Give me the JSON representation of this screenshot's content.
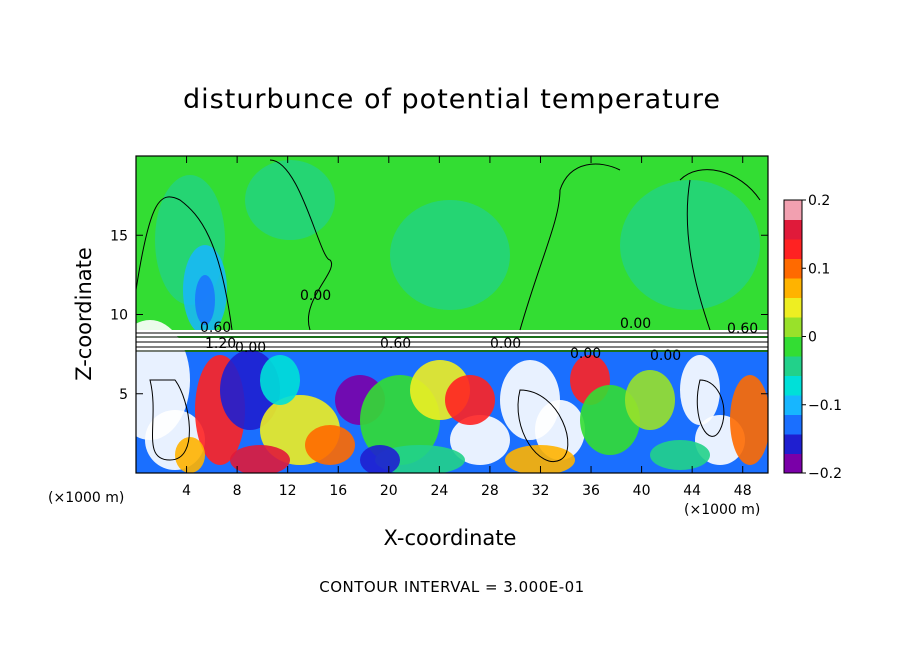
{
  "chart_data": {
    "type": "heatmap",
    "title": "disturbunce of potential temperature",
    "xlabel": "X-coordinate",
    "ylabel": "Z-coordinate",
    "x_unit_label": "(×1000 m)",
    "xlim": [
      0,
      50
    ],
    "ylim": [
      0,
      20
    ],
    "xticks": [
      "4",
      "8",
      "12",
      "16",
      "20",
      "24",
      "28",
      "32",
      "36",
      "40",
      "44",
      "48"
    ],
    "yticks": [
      "5",
      "10",
      "15"
    ],
    "colorbar": {
      "range": [
        -0.2,
        0.2
      ],
      "ticks": [
        "0.2",
        "0.1",
        "0",
        "−0.1",
        "−0.2"
      ],
      "colors": [
        "#7a00a8",
        "#1f1fd0",
        "#1a6fff",
        "#17b6ff",
        "#00e0d8",
        "#22d18a",
        "#33dd33",
        "#99e12a",
        "#eeee22",
        "#ffb300",
        "#ff6a00",
        "#ff2222",
        "#e01a3a",
        "#f2a0b0"
      ]
    },
    "contour_labels": [
      "0.00",
      "0.60",
      "1.20",
      "0.00",
      "0.60",
      "0.00",
      "0.00",
      "0.00",
      "0.60",
      "0.00"
    ],
    "footer": "CONTOUR INTERVAL = 3.000E-01"
  }
}
